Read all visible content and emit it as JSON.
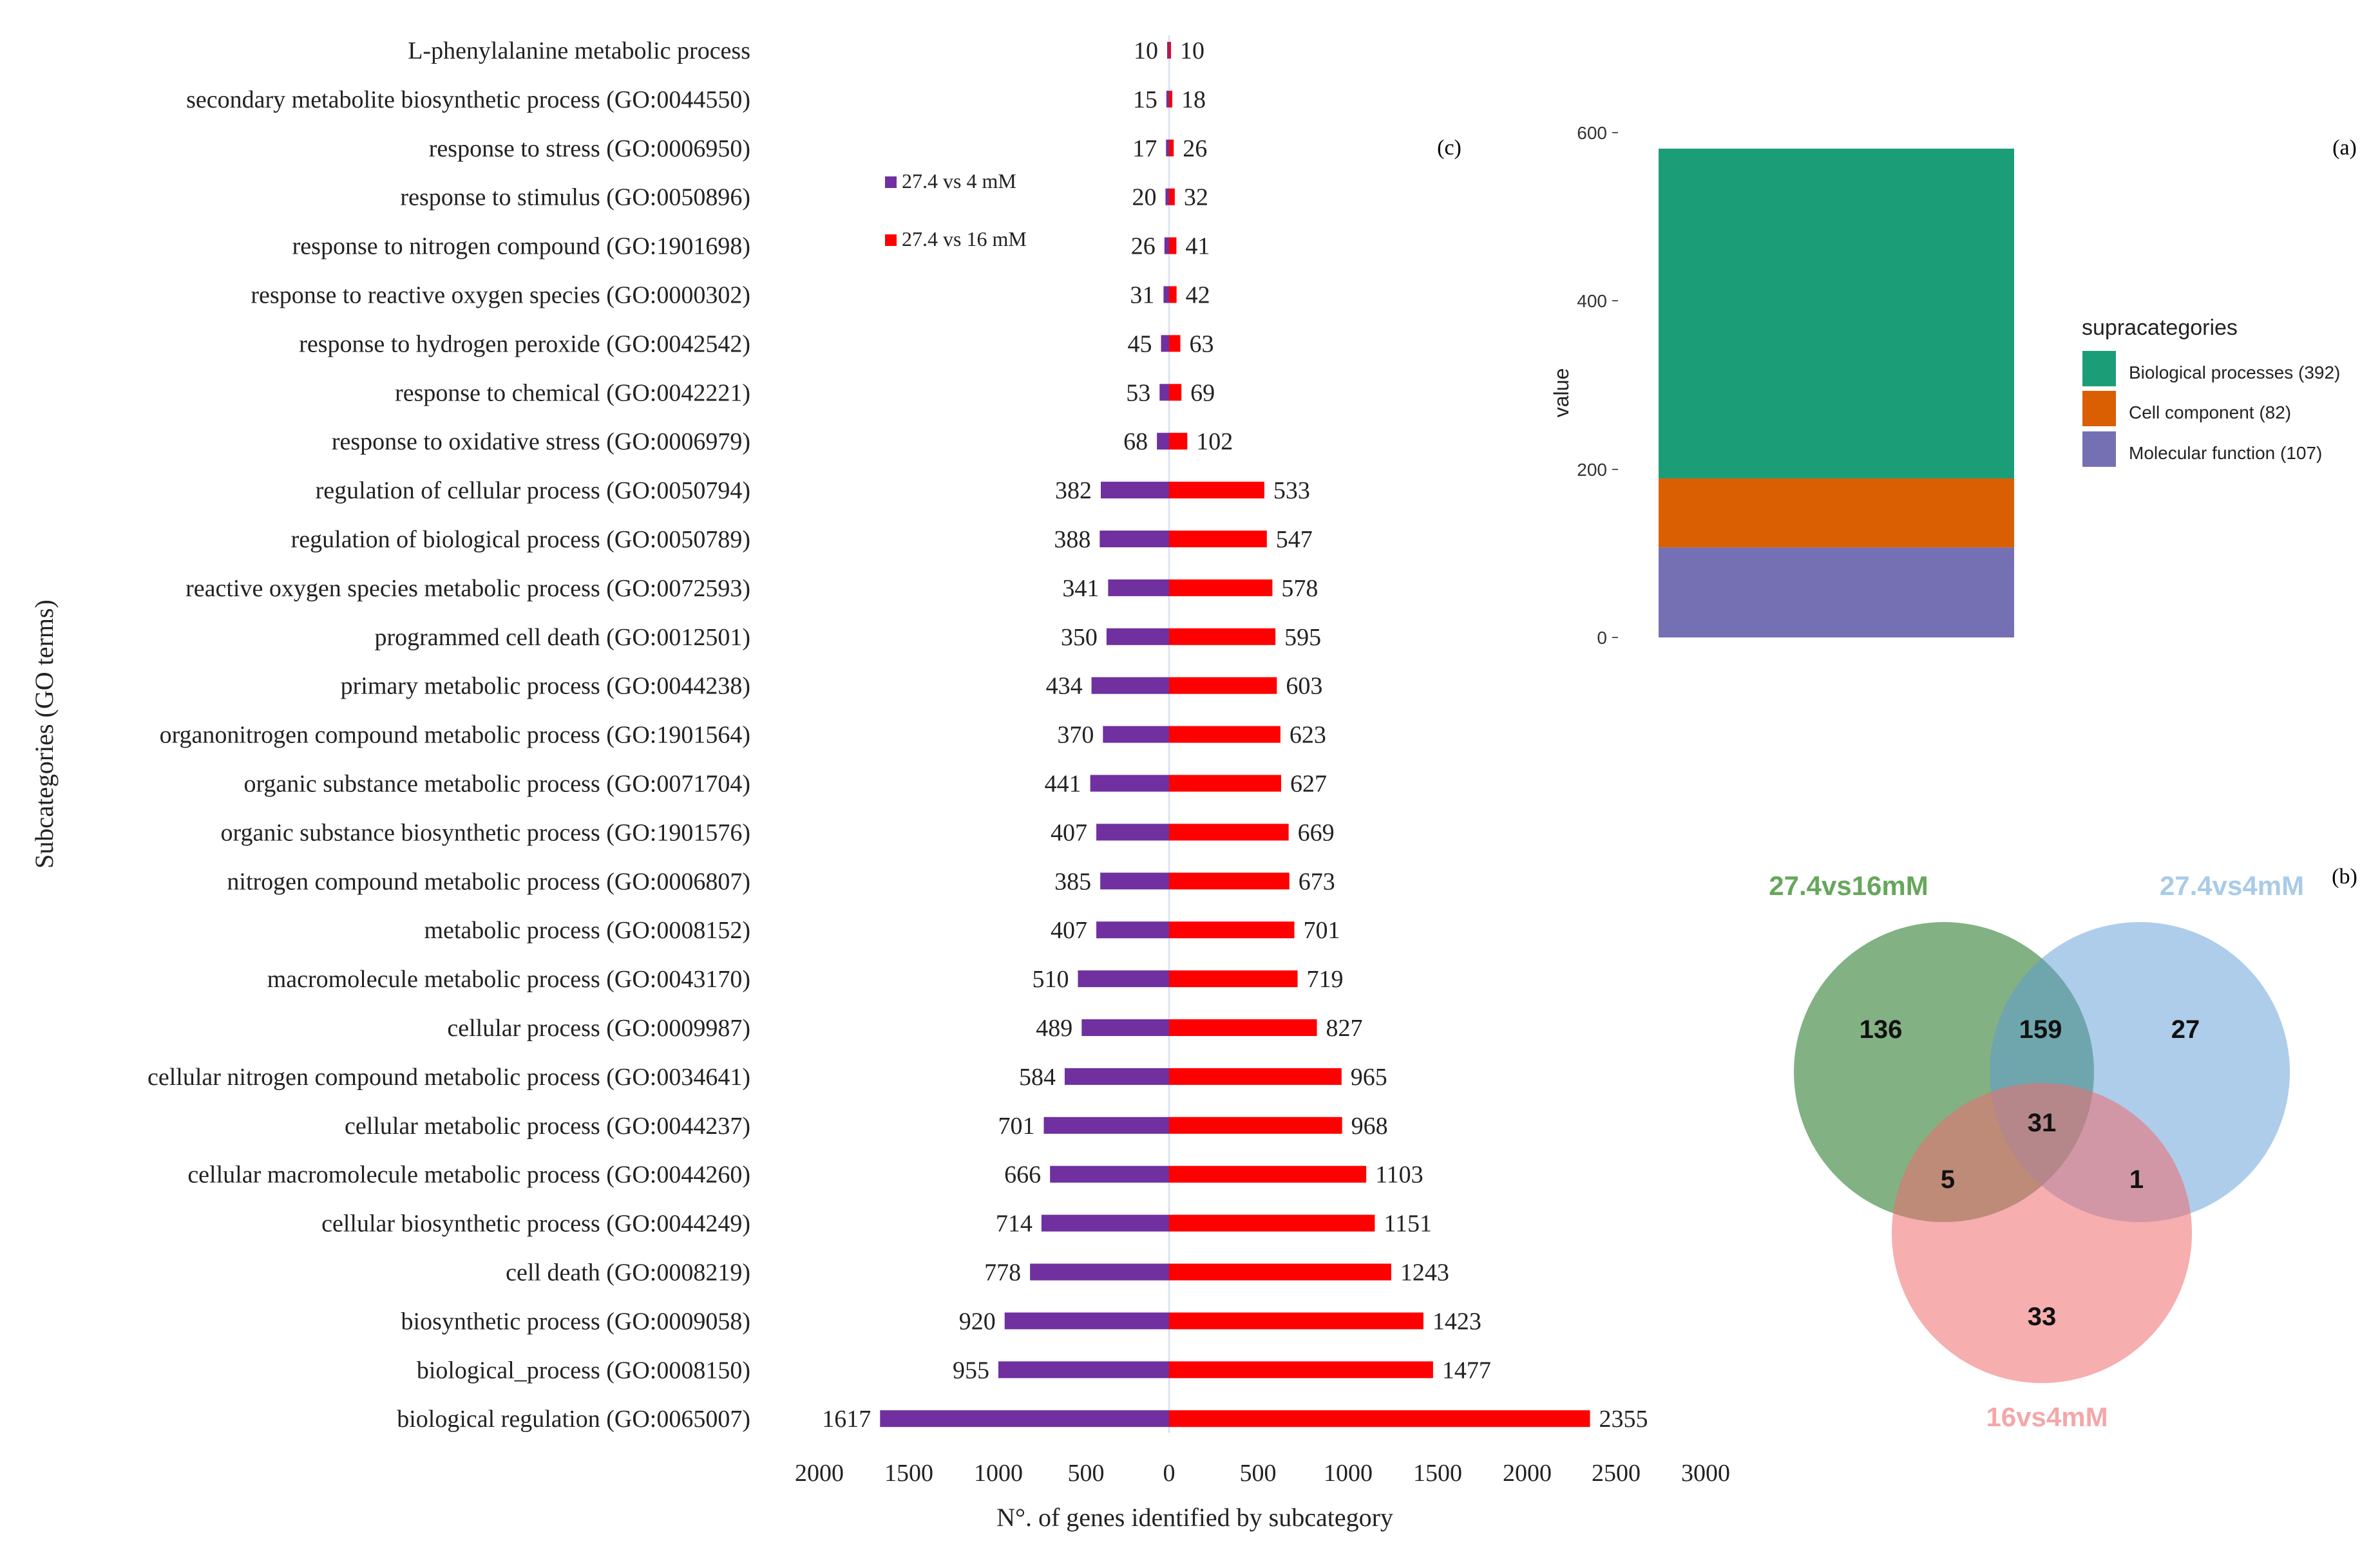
{
  "chart_data": [
    {
      "id": "c",
      "panel_label": "(c)",
      "type": "bar",
      "orientation": "horizontal-diverging",
      "ylabel": "Subcategories (GO terms)",
      "xlabel": "N°. of genes identified by subcategory",
      "x_ticks_left": [
        "2000",
        "1500",
        "1000",
        "500"
      ],
      "x_ticks_right": [
        "0",
        "500",
        "1000",
        "1500",
        "2000",
        "2500",
        "3000"
      ],
      "xlim_left": [
        0,
        2000
      ],
      "xlim_right": [
        0,
        3000
      ],
      "legend": [
        {
          "name": "27.4 vs 4 mM",
          "color": "#7030a0"
        },
        {
          "name": "27.4 vs 16 mM",
          "color": "#ff0000"
        }
      ],
      "categories": [
        "L-phenylalanine metabolic process",
        "secondary metabolite biosynthetic process (GO:0044550)",
        "response to stress (GO:0006950)",
        "response to stimulus (GO:0050896)",
        "response to nitrogen compound (GO:1901698)",
        "response to reactive oxygen species (GO:0000302)",
        "response to hydrogen peroxide (GO:0042542)",
        "response to chemical (GO:0042221)",
        "response to oxidative stress (GO:0006979)",
        "regulation of cellular process (GO:0050794)",
        "regulation of biological process (GO:0050789)",
        "reactive oxygen species metabolic process (GO:0072593)",
        "programmed cell death (GO:0012501)",
        "primary metabolic process (GO:0044238)",
        "organonitrogen compound metabolic process (GO:1901564)",
        "organic substance metabolic process (GO:0071704)",
        "organic substance biosynthetic process (GO:1901576)",
        "nitrogen compound metabolic process (GO:0006807)",
        "metabolic process (GO:0008152)",
        "macromolecule metabolic process (GO:0043170)",
        "cellular process (GO:0009987)",
        "cellular nitrogen compound metabolic process (GO:0034641)",
        "cellular metabolic process (GO:0044237)",
        "cellular macromolecule metabolic process (GO:0044260)",
        "cellular biosynthetic process (GO:0044249)",
        "cell death (GO:0008219)",
        "biosynthetic process (GO:0009058)",
        "biological_process (GO:0008150)",
        "biological regulation (GO:0065007)"
      ],
      "series": [
        {
          "name": "27.4 vs 4 mM",
          "values": [
            10,
            15,
            17,
            20,
            26,
            31,
            45,
            53,
            68,
            382,
            388,
            341,
            350,
            434,
            370,
            441,
            407,
            385,
            407,
            510,
            489,
            584,
            701,
            666,
            714,
            778,
            920,
            955,
            1617
          ]
        },
        {
          "name": "27.4 vs 16 mM",
          "values": [
            10,
            18,
            26,
            32,
            41,
            42,
            63,
            69,
            102,
            533,
            547,
            578,
            595,
            603,
            623,
            627,
            669,
            673,
            701,
            719,
            827,
            965,
            968,
            1103,
            1151,
            1243,
            1423,
            1477,
            2355
          ]
        }
      ]
    },
    {
      "id": "a",
      "panel_label": "(a)",
      "type": "bar",
      "stacked": true,
      "ylabel": "value",
      "ylim": [
        0,
        600
      ],
      "y_ticks": [
        "0",
        "200",
        "400",
        "600"
      ],
      "legend_title": "supracategories",
      "series": [
        {
          "name": "Molecular function (107)",
          "value": 107,
          "color": "#7570b3"
        },
        {
          "name": "Cell component (82)",
          "value": 82,
          "color": "#d95f02"
        },
        {
          "name": "Biological processes (392)",
          "value": 392,
          "color": "#1b9e77"
        }
      ]
    },
    {
      "id": "b",
      "panel_label": "(b)",
      "type": "venn",
      "sets": [
        {
          "name": "27.4vs16mM",
          "color": "#2e7d32",
          "label_color": "#66a75a"
        },
        {
          "name": "27.4vs4mM",
          "color": "#5b9bd5",
          "label_color": "#a9cbe8"
        },
        {
          "name": "16vs4mM",
          "color": "#ef6b6e",
          "label_color": "#f4a7a9"
        }
      ],
      "regions": [
        {
          "label": "27.4vs16mM only",
          "value": "136"
        },
        {
          "label": "27.4vs16mM & 27.4vs4mM",
          "value": "159"
        },
        {
          "label": "27.4vs4mM only",
          "value": "27"
        },
        {
          "label": "all three",
          "value": "31"
        },
        {
          "label": "27.4vs16mM & 16vs4mM",
          "value": "5"
        },
        {
          "label": "27.4vs4mM & 16vs4mM",
          "value": "1"
        },
        {
          "label": "16vs4mM only",
          "value": "33"
        }
      ]
    }
  ]
}
